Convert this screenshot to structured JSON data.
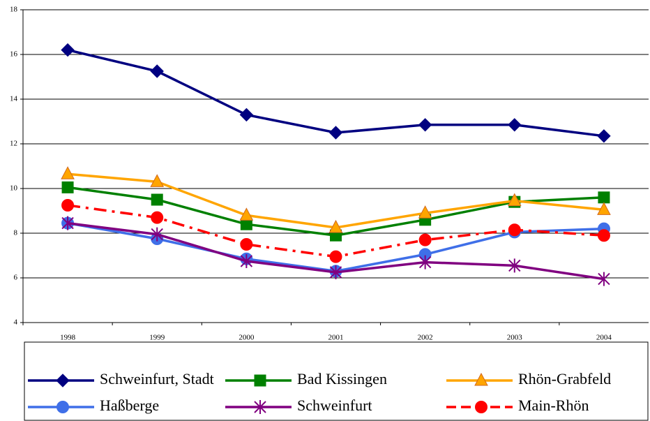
{
  "chart_data": {
    "type": "line",
    "categories": [
      "1998",
      "1999",
      "2000",
      "2001",
      "2002",
      "2003",
      "2004"
    ],
    "series": [
      {
        "name": "Schweinfurt, Stadt",
        "color": "#000080",
        "marker": "diamond",
        "values": [
          16.2,
          15.25,
          13.3,
          12.5,
          12.85,
          12.85,
          12.35
        ]
      },
      {
        "name": "Bad Kissingen",
        "color": "#008000",
        "marker": "square",
        "values": [
          10.05,
          9.5,
          8.4,
          7.9,
          8.6,
          9.4,
          9.6
        ]
      },
      {
        "name": "Rhön-Grabfeld",
        "color": "#FFA500",
        "marker": "triangle",
        "values": [
          10.65,
          10.3,
          8.8,
          8.25,
          8.9,
          9.45,
          9.05
        ]
      },
      {
        "name": "Haßberge",
        "color": "#3F6FE8",
        "marker": "circle",
        "values": [
          8.45,
          7.75,
          6.85,
          6.3,
          7.05,
          8.05,
          8.2
        ]
      },
      {
        "name": "Schweinfurt",
        "color": "#800080",
        "marker": "star",
        "values": [
          8.45,
          7.95,
          6.75,
          6.25,
          6.7,
          6.55,
          5.95
        ]
      },
      {
        "name": "Main-Rhön",
        "color": "#FF0000",
        "marker": "circle",
        "dashed": true,
        "values": [
          9.25,
          8.7,
          7.5,
          6.95,
          7.7,
          8.15,
          7.9
        ]
      }
    ],
    "ylim": [
      4,
      18
    ],
    "yticks": [
      4,
      6,
      8,
      10,
      12,
      14,
      16,
      18
    ],
    "grid": true
  }
}
